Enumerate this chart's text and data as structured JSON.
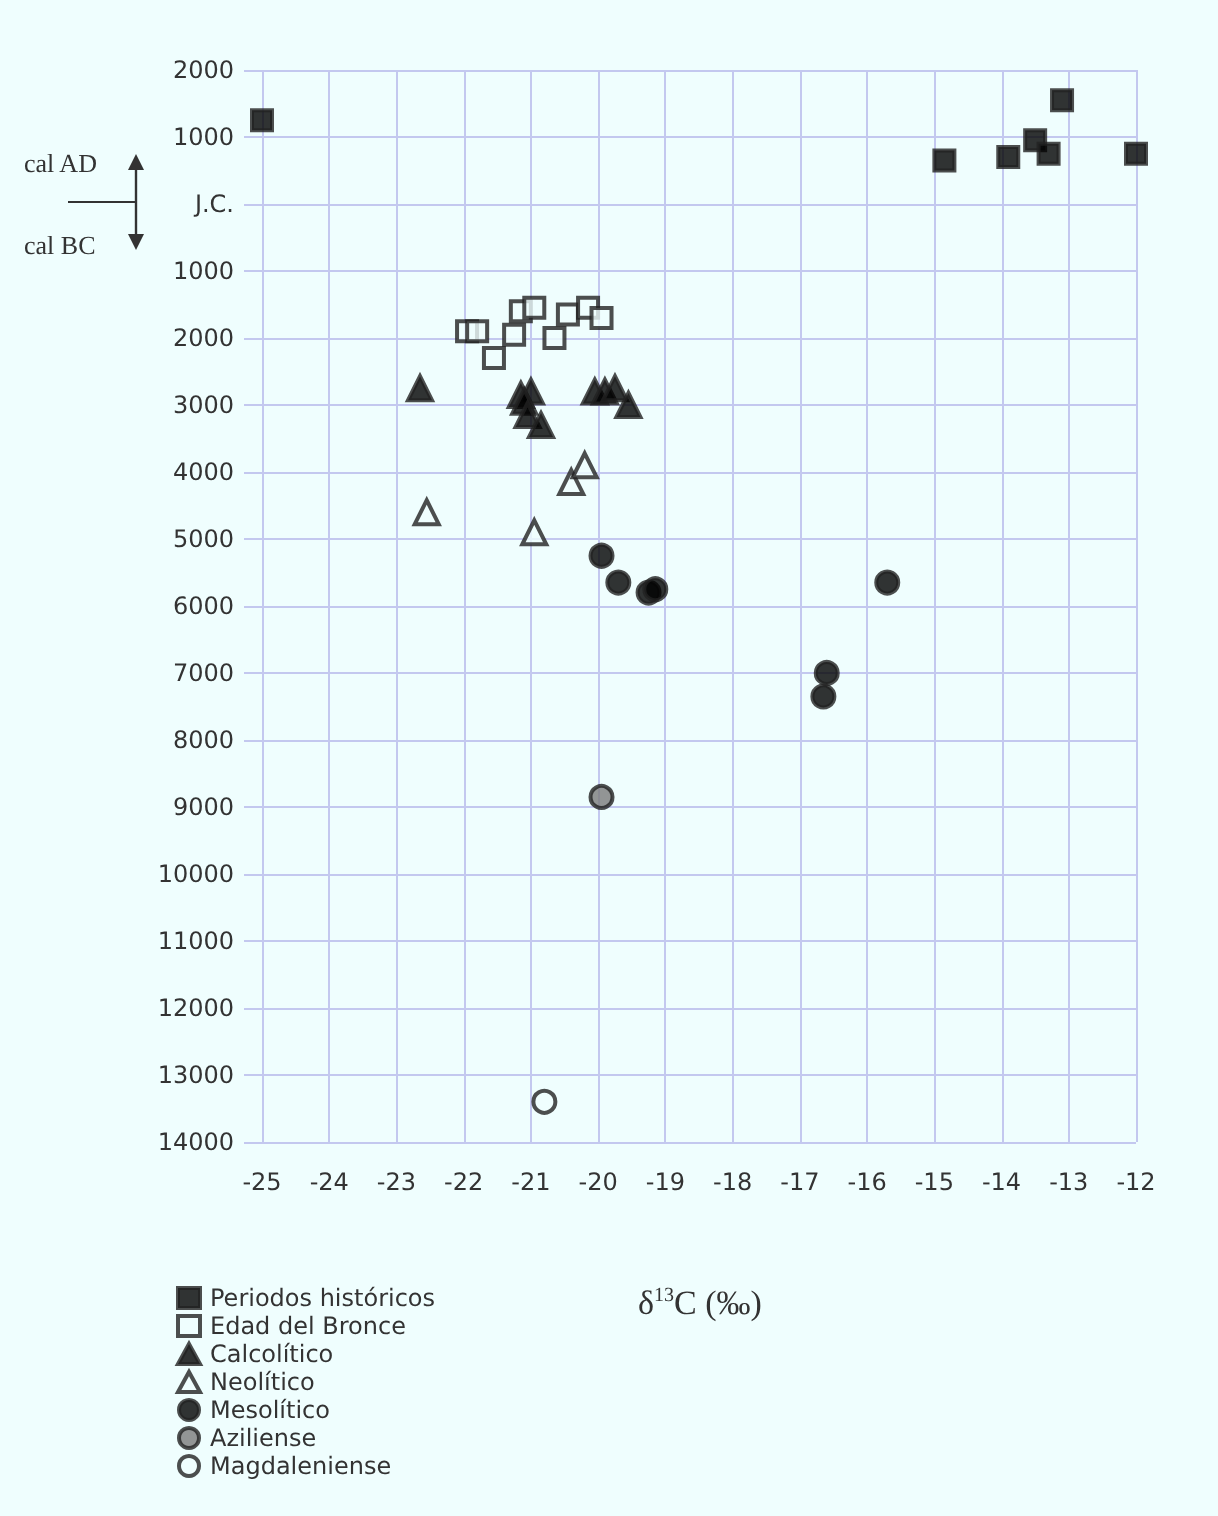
{
  "chart_data": {
    "type": "scatter",
    "xlabel": "δ$^{13}$C  (‰)",
    "annotations": [
      "cal AD",
      "cal BC"
    ],
    "xlim": [
      -25,
      -12
    ],
    "xticks": [
      -25,
      -24,
      -23,
      -22,
      -21,
      -20,
      -19,
      -18,
      -17,
      -16,
      -15,
      -14,
      -13,
      -12
    ],
    "ylim": [
      -14000,
      2000
    ],
    "yticks": [
      2000,
      1000,
      {
        "value": 0,
        "label": "J.C."
      },
      {
        "value": -1000,
        "label": "1000"
      },
      {
        "value": -2000,
        "label": "2000"
      },
      {
        "value": -3000,
        "label": "3000"
      },
      {
        "value": -4000,
        "label": "4000"
      },
      {
        "value": -5000,
        "label": "5000"
      },
      {
        "value": -6000,
        "label": "6000"
      },
      {
        "value": -7000,
        "label": "7000"
      },
      {
        "value": -8000,
        "label": "8000"
      },
      {
        "value": -9000,
        "label": "9000"
      },
      {
        "value": -10000,
        "label": "10000"
      },
      {
        "value": -11000,
        "label": "11000"
      },
      {
        "value": -12000,
        "label": "12000"
      },
      {
        "value": -13000,
        "label": "13000"
      },
      {
        "value": -14000,
        "label": "14000"
      }
    ],
    "grid": true,
    "legend": "bottom left",
    "series": [
      {
        "name": "Periodos históricos",
        "color": "#000000",
        "marker": "square",
        "x": [
          -25,
          -14.85,
          -13.9,
          -13.5,
          -13.3,
          -13.1,
          -12
        ],
        "values": [
          1250,
          650,
          700,
          950,
          750,
          1550,
          750
        ]
      },
      {
        "name": "Edad del Bronce",
        "color": "#effefe",
        "marker": "square",
        "x": [
          -21.95,
          -21.8,
          -21.55,
          -21.25,
          -21.15,
          -20.95,
          -20.65,
          -20.45,
          -20.15,
          -19.95
        ],
        "values": [
          -1900,
          -1900,
          -2300,
          -1950,
          -1600,
          -1550,
          -2000,
          -1650,
          -1550,
          -1700
        ]
      },
      {
        "name": "Calcolítico",
        "color": "#000000",
        "marker": "triangle",
        "x": [
          -22.65,
          -21.15,
          -21.0,
          -21.1,
          -21.05,
          -20.85,
          -20.05,
          -19.9,
          -19.75,
          -19.55
        ],
        "values": [
          -2750,
          -2850,
          -2800,
          -2950,
          -3150,
          -3300,
          -2800,
          -2800,
          -2750,
          -3000
        ]
      },
      {
        "name": "Neolítico",
        "color": "#effefe",
        "marker": "triangle",
        "x": [
          -22.55,
          -20.95,
          -20.4,
          -20.2
        ],
        "values": [
          -4600,
          -4900,
          -4150,
          -3900
        ]
      },
      {
        "name": "Mesolítico",
        "color": "#000000",
        "marker": "circle",
        "x": [
          -19.95,
          -19.7,
          -19.25,
          -19.15,
          -15.7,
          -16.6,
          -16.65
        ],
        "values": [
          -5250,
          -5650,
          -5800,
          -5750,
          -5650,
          -7000,
          -7350
        ]
      },
      {
        "name": "Aziliense",
        "color": "#7a7a7a",
        "marker": "circle",
        "x": [
          -19.95
        ],
        "values": [
          -8850
        ]
      },
      {
        "name": "Magdaleniense",
        "color": "#effefe",
        "marker": "circle",
        "x": [
          -20.8
        ],
        "values": [
          -13400
        ]
      }
    ]
  }
}
